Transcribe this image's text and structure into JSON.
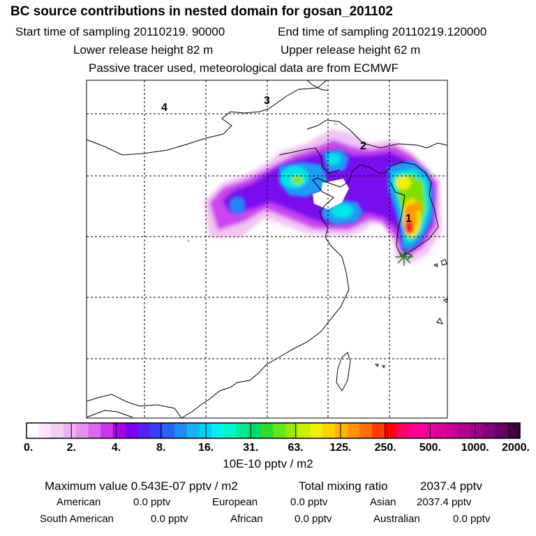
{
  "header": {
    "title": "BC  source contributions in nested domain for gosan_201102",
    "start_label": "Start time of sampling 20110219. 90000",
    "end_label": "End time of sampling 20110219.120000",
    "lower_label": "Lower release height   82 m",
    "upper_label": "Upper release height   62 m",
    "tracer_label": "Passive tracer used, meteorological data are from ECMWF"
  },
  "map": {
    "trajectory_markers": [
      "1",
      "2",
      "3",
      "4"
    ],
    "receptor_icon": "asterisk-icon"
  },
  "chart_data": {
    "type": "heatmap",
    "title": "BC  source contributions in nested domain for gosan_201102",
    "colorbar": {
      "unit_label": "10E-10 pptv / m2",
      "tick_labels": [
        "0.",
        "2.",
        "4.",
        "8.",
        "16.",
        "31.",
        "63.",
        "125.",
        "250.",
        "500.",
        "1000.",
        "2000."
      ],
      "colors": [
        "#ffffff",
        "#fbe6fb",
        "#f5cdf5",
        "#eeb1f1",
        "#e890ee",
        "#dd66ee",
        "#cc33ee",
        "#aa00ee",
        "#7a00ee",
        "#5a1ef0",
        "#3c3cf5",
        "#2864f5",
        "#1e8cf5",
        "#14b4f5",
        "#00d2f5",
        "#00f0f0",
        "#00f5c8",
        "#00eb96",
        "#00dc64",
        "#2ddc2d",
        "#64e61e",
        "#96eb00",
        "#c8f000",
        "#f0f000",
        "#ffd200",
        "#ffb400",
        "#ff9600",
        "#ff6e00",
        "#ff3c00",
        "#ff0000",
        "#ff0064",
        "#ff0096",
        "#f0009b",
        "#dc009b",
        "#c80096",
        "#b40091",
        "#a0008c",
        "#820078",
        "#640064",
        "#3c003c"
      ]
    }
  },
  "footer": {
    "max_label": "Maximum value  0.543E-07 pptv / m2",
    "total_label": "Total mixing ratio",
    "total_value": "2037.4 pptv",
    "regions": [
      {
        "name": "American",
        "value": "0.0 pptv"
      },
      {
        "name": "European",
        "value": "0.0 pptv"
      },
      {
        "name": "Asian",
        "value": "2037.4 pptv"
      },
      {
        "name": "South American",
        "value": "0.0 pptv"
      },
      {
        "name": "African",
        "value": "0.0 pptv"
      },
      {
        "name": "Australian",
        "value": "0.0 pptv"
      }
    ]
  }
}
